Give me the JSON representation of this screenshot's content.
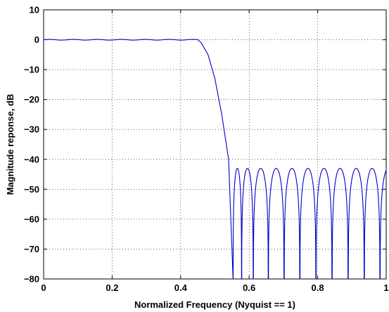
{
  "chart_data": {
    "type": "line",
    "title": "",
    "xlabel": "Normalized Frequency (Nyquist == 1)",
    "ylabel": "Magnitude reponse, dB",
    "xlim": [
      0,
      1
    ],
    "ylim": [
      -80,
      10
    ],
    "xticks": [
      0,
      0.2,
      0.4,
      0.6,
      0.8,
      1
    ],
    "xtick_labels": [
      "0",
      "0.2",
      "0.4",
      "0.6",
      "0.8",
      "1"
    ],
    "yticks": [
      10,
      0,
      -10,
      -20,
      -30,
      -40,
      -50,
      -60,
      -70,
      -80
    ],
    "ytick_labels": [
      "10",
      "0",
      "−10",
      "−20",
      "−30",
      "−40",
      "−50",
      "−60",
      "−70",
      "−80"
    ],
    "grid": true,
    "line_color": "#0000cc",
    "series": [
      {
        "values_description": "lowpass equiripple filter response",
        "passband": {
          "x_start": 0,
          "x_end": 0.45,
          "level_db": 0
        },
        "transition": {
          "x_start": 0.45,
          "x_end": 0.553
        },
        "stopband": {
          "ripple_peak_db": -43,
          "zeros_x": [
            0.553,
            0.578,
            0.612,
            0.656,
            0.702,
            0.748,
            0.795,
            0.842,
            0.889,
            0.936,
            0.982
          ]
        },
        "x": [
          0,
          0.05,
          0.1,
          0.15,
          0.2,
          0.25,
          0.3,
          0.35,
          0.4,
          0.44,
          0.46,
          0.48,
          0.5,
          0.52,
          0.54,
          0.553
        ],
        "y": [
          0,
          -0.1,
          0.1,
          -0.1,
          0.1,
          -0.1,
          0.1,
          -0.1,
          0.1,
          0,
          -1,
          -5,
          -13,
          -25,
          -40,
          -80
        ]
      }
    ]
  }
}
